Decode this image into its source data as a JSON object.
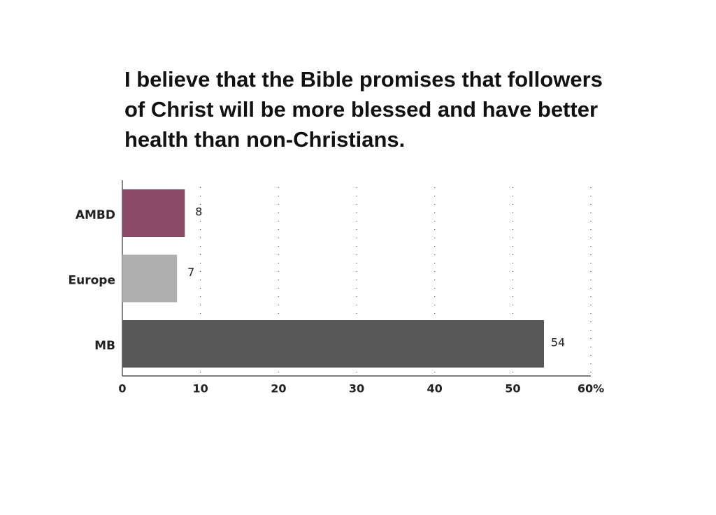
{
  "chart_data": {
    "type": "bar",
    "orientation": "horizontal",
    "title": "I believe that the Bible promises that followers of Christ will be more blessed and have better health than non-Christians.",
    "categories": [
      "AMBD",
      "Europe",
      "MB"
    ],
    "values": [
      8,
      7,
      54
    ],
    "colors": [
      "#8b4a67",
      "#b0b0b0",
      "#575757"
    ],
    "xlim": [
      0,
      60
    ],
    "xticks": [
      0,
      10,
      20,
      30,
      40,
      50,
      {
        "value": 60,
        "label": "60%"
      }
    ],
    "grid": true
  }
}
